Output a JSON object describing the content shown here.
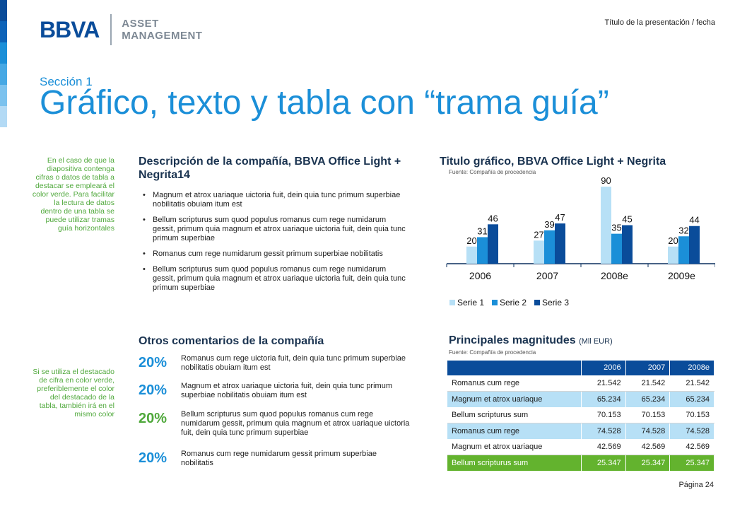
{
  "header": {
    "logo_bbva": "BBVA",
    "logo_asset": "ASSET",
    "logo_management": "MANAGEMENT",
    "presentation_title": "Título de la presentación / fecha",
    "section": "Sección 1",
    "title": "Gráfico, texto y tabla con “trama guía”"
  },
  "colors": {
    "primary_blue": "#1b8fd8",
    "dark_blue": "#0a4c9a",
    "light_blue": "#b7e0f6",
    "green": "#63b32e",
    "stripe": [
      "#0a4c9a",
      "#0d63b8",
      "#1b8fd8",
      "#46a8e4",
      "#7cc2ee",
      "#b3daf5"
    ]
  },
  "side_notes": {
    "note1": "En el caso de que la diapositiva contenga cifras o datos de tabla a destacar se empleará el color verde. Para facilitar la lectura de datos dentro de una tabla se puede utilizar tramas guía horizontales",
    "note2": "Si se utiliza el destacado de cifra en color verde, preferiblemente el color del destacado de la tabla, también irá en el mismo color"
  },
  "description": {
    "title": "Descripción de la compañía, BBVA Office Light + Negrita14",
    "bullets": [
      "Magnum et atrox uariaque uictoria fuit, dein quia tunc primum superbiae nobilitatis obuiam itum est",
      "Bellum scripturus sum quod populus romanus cum rege numidarum gessit, primum quia magnum et atrox uariaque uictoria fuit, dein quia tunc primum superbiae",
      "Romanus cum rege numidarum  gessit primum superbiae nobilitatis",
      "Bellum scripturus sum quod populus romanus cum rege numidarum gessit, primum quia magnum et atrox uariaque uictoria fuit, dein quia tunc primum superbiae"
    ]
  },
  "chart_section": {
    "title": "Titulo gráfico, BBVA Office Light + Negrita",
    "source": "Fuente: Compañía de procedencia"
  },
  "chart_data": {
    "type": "bar",
    "categories": [
      "2006",
      "2007",
      "2008e",
      "2009e"
    ],
    "series": [
      {
        "name": "Serie 1",
        "color": "#b7e0f6",
        "values": [
          20,
          27,
          90,
          20
        ]
      },
      {
        "name": "Serie 2",
        "color": "#1b8fd8",
        "values": [
          31,
          39,
          35,
          32
        ]
      },
      {
        "name": "Serie 3",
        "color": "#0a4c9a",
        "values": [
          46,
          47,
          45,
          44
        ]
      }
    ],
    "ylim": [
      0,
      95
    ],
    "grid": false,
    "legend_position": "bottom-left"
  },
  "comments": {
    "title": "Otros comentarios de la compañía",
    "items": [
      {
        "pct": "20%",
        "text": "Romanus cum rege uictoria fuit, dein quia tunc primum superbiae nobilitatis obuiam itum est"
      },
      {
        "pct": "20%",
        "text": "Magnum et atrox uariaque uictoria fuit, dein quia tunc primum superbiae nobilitatis obuiam itum est"
      },
      {
        "pct": "20%",
        "text": "Bellum scripturus sum quod populus romanus cum rege numidarum gessit, primum quia magnum et atrox uariaque uictoria fuit, dein quia tunc primum superbiae"
      },
      {
        "pct": "20%",
        "text": "Romanus cum rege numidarum  gessit primum superbiae nobilitatis"
      }
    ]
  },
  "magnitudes": {
    "title": "Principales magnitudes",
    "unit": "(Mll EUR)",
    "source": "Fuente: Compañía de procedencia",
    "headers": [
      "",
      "2006",
      "2007",
      "2008e"
    ],
    "rows": [
      {
        "label": "Romanus cum rege",
        "values": [
          "21.542",
          "21.542",
          "21.542"
        ]
      },
      {
        "label": "Magnum et atrox uariaque",
        "values": [
          "65.234",
          "65.234",
          "65.234"
        ]
      },
      {
        "label": "Bellum scripturus sum",
        "values": [
          "70.153",
          "70.153",
          "70.153"
        ]
      },
      {
        "label": "Romanus cum rege",
        "values": [
          "74.528",
          "74.528",
          "74.528"
        ]
      },
      {
        "label": "Magnum et atrox uariaque",
        "values": [
          "42.569",
          "42.569",
          "42.569"
        ]
      },
      {
        "label": "Bellum scripturus sum",
        "values": [
          "25.347",
          "25.347",
          "25.347"
        ]
      }
    ]
  },
  "footer": {
    "page": "Página 24"
  }
}
